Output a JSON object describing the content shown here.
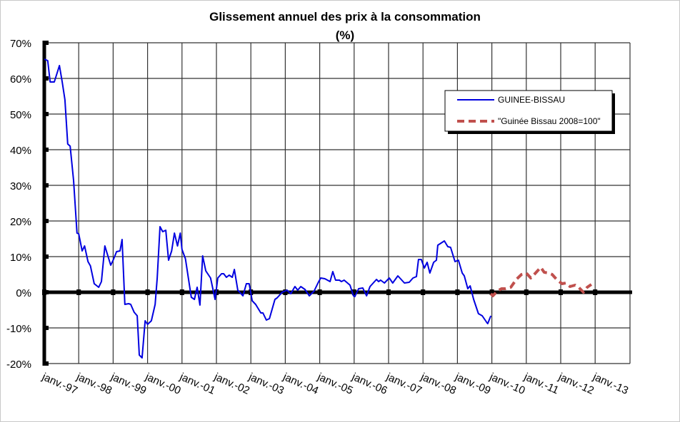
{
  "chart_data": {
    "type": "line",
    "title": "Glissement annuel des prix à la consommation",
    "subtitle": "(%)",
    "xlabel": "",
    "ylabel": "",
    "ylim": [
      -20,
      70
    ],
    "xlim": [
      1997.0,
      2014.0
    ],
    "grid": true,
    "legend_position": "top-right",
    "y_ticks": [
      "70%",
      "60%",
      "50%",
      "40%",
      "30%",
      "20%",
      "10%",
      "0%",
      "-10%",
      "-20%"
    ],
    "y_tick_values": [
      70,
      60,
      50,
      40,
      30,
      20,
      10,
      0,
      -10,
      -20
    ],
    "x_ticks": [
      "janv.-97",
      "janv.-98",
      "janv.-99",
      "janv.-00",
      "janv.-01",
      "janv.-02",
      "janv.-03",
      "janv.-04",
      "janv.-05",
      "janv.-06",
      "janv.-07",
      "janv.-08",
      "janv.-09",
      "janv.-10",
      "janv.-11",
      "janv.-12",
      "janv.-13"
    ],
    "x_tick_values": [
      1997,
      1998,
      1999,
      2000,
      2001,
      2002,
      2003,
      2004,
      2005,
      2006,
      2007,
      2008,
      2009,
      2010,
      2011,
      2012,
      2013
    ],
    "series": [
      {
        "name": "GUINEE-BISSAU",
        "color": "#0000e0",
        "style": "solid",
        "x": [
          1997.0,
          1997.1,
          1997.17,
          1997.29,
          1997.44,
          1997.52,
          1997.6,
          1997.68,
          1997.75,
          1997.85,
          1997.95,
          1998.0,
          1998.1,
          1998.17,
          1998.27,
          1998.34,
          1998.45,
          1998.58,
          1998.66,
          1998.76,
          1998.93,
          1999.0,
          1999.1,
          1999.2,
          1999.26,
          1999.34,
          1999.45,
          1999.51,
          1999.61,
          1999.7,
          1999.76,
          1999.84,
          1999.93,
          2000.0,
          2000.11,
          2000.22,
          2000.28,
          2000.36,
          2000.44,
          2000.53,
          2000.61,
          2000.7,
          2000.78,
          2000.87,
          2000.95,
          2001.0,
          2001.1,
          2001.27,
          2001.36,
          2001.44,
          2001.52,
          2001.6,
          2001.69,
          2001.83,
          2001.96,
          2002.04,
          2002.15,
          2002.21,
          2002.29,
          2002.37,
          2002.46,
          2002.52,
          2002.62,
          2002.77,
          2002.87,
          2002.95,
          2003.04,
          2003.14,
          2003.29,
          2003.35,
          2003.45,
          2003.54,
          2003.7,
          2003.76,
          2003.91,
          2004.05,
          2004.16,
          2004.28,
          2004.36,
          2004.45,
          2004.57,
          2004.7,
          2004.84,
          2004.95,
          2005.03,
          2005.15,
          2005.3,
          2005.38,
          2005.46,
          2005.57,
          2005.63,
          2005.71,
          2005.88,
          2005.98,
          2006.02,
          2006.13,
          2006.25,
          2006.36,
          2006.46,
          2006.65,
          2006.71,
          2006.77,
          2006.88,
          2007.02,
          2007.12,
          2007.27,
          2007.46,
          2007.6,
          2007.71,
          2007.81,
          2007.87,
          2007.95,
          2008.04,
          2008.12,
          2008.2,
          2008.31,
          2008.39,
          2008.43,
          2008.62,
          2008.72,
          2008.8,
          2008.93,
          2009.03,
          2009.14,
          2009.2,
          2009.3,
          2009.37,
          2009.47,
          2009.61,
          2009.72,
          2009.86,
          2009.88,
          2009.97
        ],
        "values": [
          65.4,
          65,
          59,
          59,
          63.6,
          59,
          54,
          41.6,
          41,
          31.4,
          16.6,
          16.4,
          11.6,
          13,
          8.6,
          7.4,
          2.4,
          1.4,
          3,
          13,
          7.6,
          9,
          11.4,
          11.6,
          14.8,
          -3.4,
          -3.2,
          -3.4,
          -5.6,
          -6.6,
          -17.6,
          -18.4,
          -8,
          -9,
          -8,
          -3.4,
          4,
          18.4,
          17,
          17.4,
          9,
          11.6,
          16.6,
          13,
          16.6,
          12,
          9.4,
          -1.4,
          -2,
          1.4,
          -3.6,
          10.2,
          6,
          4,
          -2,
          4,
          5.2,
          5.2,
          4.2,
          4.8,
          4.2,
          6.4,
          0.6,
          -1,
          2.4,
          2.4,
          -2.4,
          -3.4,
          -5.8,
          -5.8,
          -7.8,
          -7.4,
          -2,
          -1.6,
          0,
          0.6,
          -0.4,
          1.6,
          0.6,
          1.6,
          0.8,
          -1,
          0.4,
          2.6,
          4,
          3.8,
          3,
          5.8,
          3.4,
          3.4,
          3,
          3.4,
          2,
          -1,
          -1.2,
          1,
          1.2,
          -1,
          1.6,
          3.6,
          3,
          3.4,
          2.6,
          4,
          2.6,
          4.6,
          2.6,
          2.8,
          4,
          4.4,
          9.2,
          9.2,
          6.8,
          8.4,
          5.4,
          8.4,
          9,
          13.2,
          14.4,
          12.8,
          12.6,
          8.6,
          9,
          5.4,
          4.6,
          1,
          1.8,
          -2,
          -6,
          -6.6,
          -8.6,
          -8.8,
          -6.6
        ]
      },
      {
        "name": "\"Guinée Bissau 2008=100\"",
        "color": "#c0504d",
        "style": "dashed",
        "x": [
          2009.97,
          2010.03,
          2010.17,
          2010.28,
          2010.4,
          2010.55,
          2010.71,
          2010.86,
          2011.0,
          2011.13,
          2011.27,
          2011.42,
          2011.52,
          2011.65,
          2011.75,
          2011.9,
          2012.04,
          2012.15,
          2012.27,
          2012.42,
          2012.52,
          2012.66,
          2012.77,
          2012.89
        ],
        "values": [
          -0.4,
          -1,
          0.4,
          1,
          1,
          1.4,
          3.6,
          5,
          5.4,
          4,
          5.4,
          7,
          5.6,
          5.4,
          5,
          3.4,
          2.4,
          2.6,
          1.6,
          2,
          1.4,
          0,
          1.4,
          2.2
        ]
      }
    ]
  }
}
